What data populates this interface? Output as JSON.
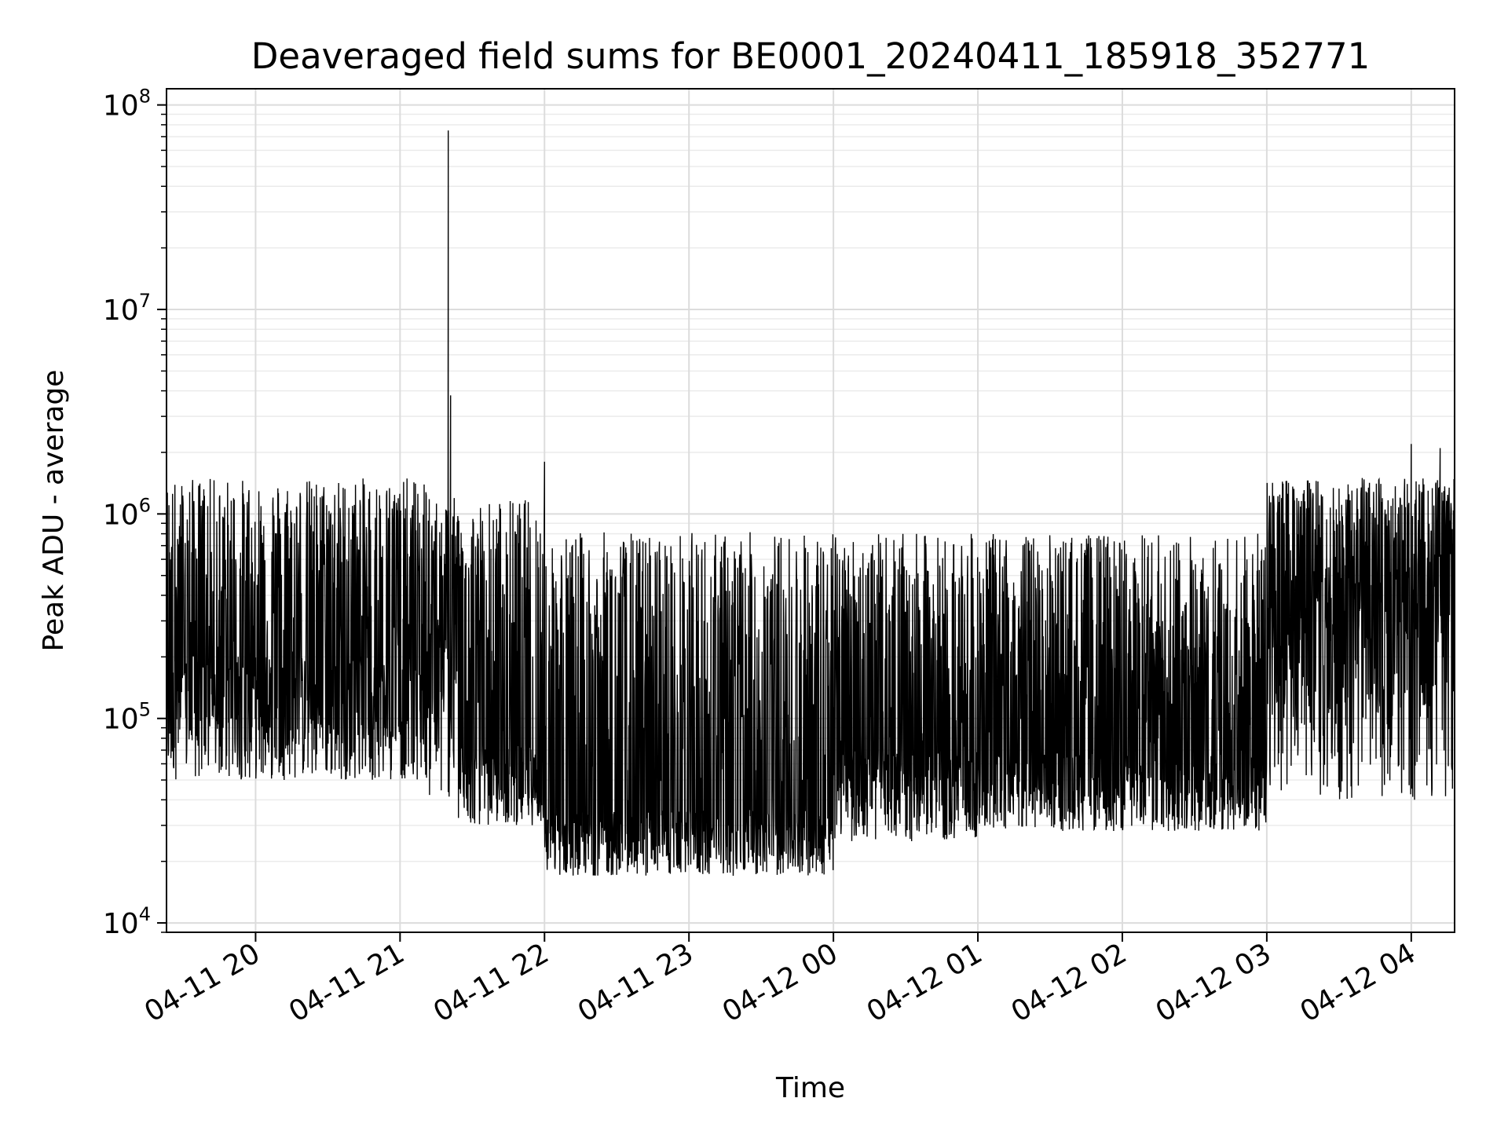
{
  "chart_data": {
    "type": "line",
    "title": "Deaveraged field sums for BE0001_20240411_185918_352771",
    "xlabel": "Time",
    "ylabel": "Peak ADU - average",
    "xscale": "time",
    "yscale": "log",
    "grid": true,
    "line_color": "#000000",
    "x_range": [
      "2024-04-11 19:23",
      "2024-04-12 04:18"
    ],
    "ylim": [
      9000,
      120000000
    ],
    "x_ticks": [
      {
        "label": "04-11 20",
        "time": "2024-04-11 20:00"
      },
      {
        "label": "04-11 21",
        "time": "2024-04-11 21:00"
      },
      {
        "label": "04-11 22",
        "time": "2024-04-11 22:00"
      },
      {
        "label": "04-11 23",
        "time": "2024-04-11 23:00"
      },
      {
        "label": "04-12 00",
        "time": "2024-04-12 00:00"
      },
      {
        "label": "04-12 01",
        "time": "2024-04-12 01:00"
      },
      {
        "label": "04-12 02",
        "time": "2024-04-12 02:00"
      },
      {
        "label": "04-12 03",
        "time": "2024-04-12 03:00"
      },
      {
        "label": "04-12 04",
        "time": "2024-04-12 04:00"
      }
    ],
    "y_ticks": [
      {
        "base": "10",
        "exp": "4",
        "value": 10000
      },
      {
        "base": "10",
        "exp": "5",
        "value": 100000
      },
      {
        "base": "10",
        "exp": "6",
        "value": 1000000
      },
      {
        "base": "10",
        "exp": "7",
        "value": 10000000
      },
      {
        "base": "10",
        "exp": "8",
        "value": 100000000
      }
    ],
    "series": [
      {
        "segments": [
          {
            "start": "2024-04-11 19:23",
            "end": "2024-04-11 21:12",
            "low": 50000,
            "high": 1500000,
            "base": 150000
          },
          {
            "start": "2024-04-11 21:12",
            "end": "2024-04-11 21:24",
            "low": 40000,
            "high": 1200000,
            "base": 200000
          },
          {
            "start": "2024-04-11 21:24",
            "end": "2024-04-11 22:00",
            "low": 30000,
            "high": 1200000,
            "base": 60000
          },
          {
            "start": "2024-04-11 22:00",
            "end": "2024-04-12 00:00",
            "low": 17000,
            "high": 820000,
            "base": 30000
          },
          {
            "start": "2024-04-12 00:00",
            "end": "2024-04-12 01:00",
            "low": 25000,
            "high": 800000,
            "base": 55000
          },
          {
            "start": "2024-04-12 01:00",
            "end": "2024-04-12 03:00",
            "low": 28000,
            "high": 800000,
            "base": 55000
          },
          {
            "start": "2024-04-12 03:00",
            "end": "2024-04-12 04:18",
            "low": 40000,
            "high": 1500000,
            "base": 300000
          }
        ],
        "peaks": [
          {
            "time": "2024-04-11 21:20",
            "value": 75000000
          },
          {
            "time": "2024-04-11 21:20",
            "value": 38000000
          },
          {
            "time": "2024-04-11 21:21",
            "value": 3800000
          },
          {
            "time": "2024-04-11 22:00",
            "value": 1800000
          },
          {
            "time": "2024-04-12 04:00",
            "value": 2200000
          },
          {
            "time": "2024-04-12 04:12",
            "value": 2100000
          }
        ]
      }
    ]
  }
}
